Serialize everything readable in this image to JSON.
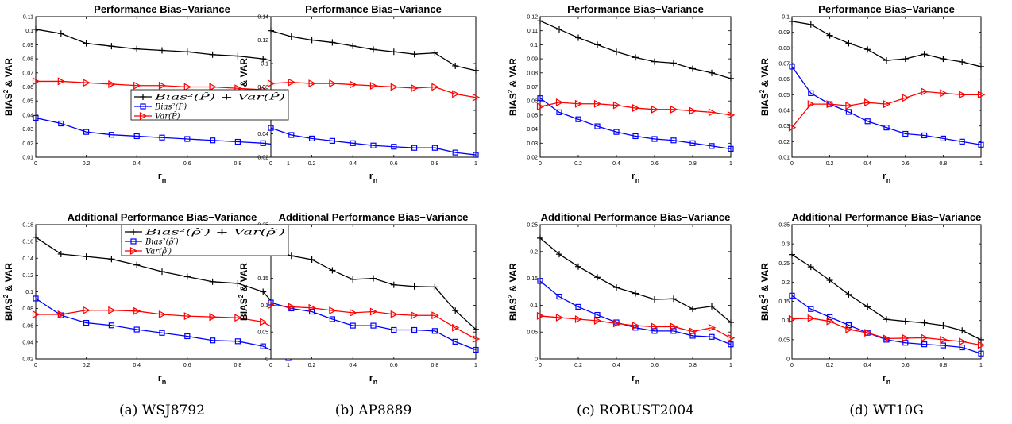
{
  "figure": {
    "y_axis_label": "BIAS",
    "y_axis_sup": "2",
    "y_axis_rest": " & VAR",
    "x_axis_label": "r",
    "x_axis_sub": "n",
    "top_title": "Performance Bias−Variance",
    "bottom_title": "Additional Performance Bias−Variance"
  },
  "captions": [
    "(a) WSJ8792",
    "(b) AP8889",
    "(c) ROBUST2004",
    "(d) WT10G"
  ],
  "legend_top": [
    "Bias²(P̂) + Var(P̂)",
    "Bias²(P̂)",
    "Var(P̂)"
  ],
  "legend_bottom": [
    "Bias²(ρ̂′) + Var(ρ̂′)",
    "Bias²(ρ̂′)",
    "Var(ρ̂′)"
  ],
  "colors": {
    "total": "#000000",
    "bias": "#0000ff",
    "var": "#ff0000"
  },
  "chart_data": [
    {
      "type": "line",
      "title": "Performance Bias−Variance",
      "xlabel": "r_n",
      "ylabel": "BIAS^2 & VAR",
      "x": [
        0,
        0.1,
        0.2,
        0.3,
        0.4,
        0.5,
        0.6,
        0.7,
        0.8,
        0.9,
        1
      ],
      "xlim": [
        0,
        1
      ],
      "ylim": [
        0.01,
        0.11
      ],
      "xticks": [
        "0",
        "0.2",
        "0.4",
        "0.6",
        "0.8",
        "1"
      ],
      "yticks": [
        "0.01",
        "0.02",
        "0.03",
        "0.04",
        "0.05",
        "0.06",
        "0.07",
        "0.08",
        "0.09",
        "0.1",
        "0.11"
      ],
      "legend": "right",
      "series": [
        {
          "values": [
            0.101,
            0.098,
            0.091,
            0.089,
            0.087,
            0.086,
            0.085,
            0.083,
            0.082,
            0.08,
            0.076
          ]
        },
        {
          "values": [
            0.038,
            0.034,
            0.028,
            0.026,
            0.025,
            0.024,
            0.023,
            0.022,
            0.021,
            0.02,
            0.018
          ]
        },
        {
          "values": [
            0.064,
            0.064,
            0.063,
            0.062,
            0.061,
            0.061,
            0.06,
            0.06,
            0.059,
            0.058,
            0.057
          ]
        }
      ]
    },
    {
      "type": "line",
      "title": "Performance Bias−Variance",
      "xlabel": "r_n",
      "ylabel": "BIAS^2 & VAR",
      "x": [
        0,
        0.1,
        0.2,
        0.3,
        0.4,
        0.5,
        0.6,
        0.7,
        0.8,
        0.9,
        1
      ],
      "xlim": [
        0,
        1
      ],
      "ylim": [
        0.02,
        0.14
      ],
      "xticks": [
        "0",
        "0.2",
        "0.4",
        "0.6",
        "0.8",
        "1"
      ],
      "yticks": [
        "0.02",
        "0.04",
        "0.06",
        "0.08",
        "0.1",
        "0.12",
        "0.14"
      ],
      "series": [
        {
          "values": [
            0.128,
            0.123,
            0.12,
            0.118,
            0.115,
            0.112,
            0.11,
            0.108,
            0.109,
            0.098,
            0.094
          ]
        },
        {
          "values": [
            0.045,
            0.039,
            0.036,
            0.034,
            0.032,
            0.03,
            0.029,
            0.028,
            0.028,
            0.024,
            0.022
          ]
        },
        {
          "values": [
            0.083,
            0.084,
            0.083,
            0.083,
            0.082,
            0.081,
            0.08,
            0.079,
            0.08,
            0.074,
            0.071
          ]
        }
      ]
    },
    {
      "type": "line",
      "title": "Performance Bias−Variance",
      "xlabel": "r_n",
      "ylabel": "BIAS^2 & VAR",
      "x": [
        0,
        0.1,
        0.2,
        0.3,
        0.4,
        0.5,
        0.6,
        0.7,
        0.8,
        0.9,
        1
      ],
      "xlim": [
        0,
        1
      ],
      "ylim": [
        0.02,
        0.12
      ],
      "xticks": [
        "0",
        "0.2",
        "0.4",
        "0.6",
        "0.8",
        "1"
      ],
      "yticks": [
        "0.02",
        "0.03",
        "0.04",
        "0.05",
        "0.06",
        "0.07",
        "0.08",
        "0.09",
        "0.1",
        "0.11",
        "0.12"
      ],
      "series": [
        {
          "values": [
            0.117,
            0.111,
            0.105,
            0.1,
            0.095,
            0.091,
            0.088,
            0.087,
            0.083,
            0.08,
            0.076
          ]
        },
        {
          "values": [
            0.062,
            0.052,
            0.047,
            0.042,
            0.038,
            0.035,
            0.033,
            0.032,
            0.03,
            0.028,
            0.026
          ]
        },
        {
          "values": [
            0.056,
            0.059,
            0.058,
            0.058,
            0.057,
            0.055,
            0.054,
            0.054,
            0.053,
            0.052,
            0.05
          ]
        }
      ]
    },
    {
      "type": "line",
      "title": "Performance Bias−Variance",
      "xlabel": "r_n",
      "ylabel": "BIAS^2 & VAR",
      "x": [
        0,
        0.1,
        0.2,
        0.3,
        0.4,
        0.5,
        0.6,
        0.7,
        0.8,
        0.9,
        1
      ],
      "xlim": [
        0,
        1
      ],
      "ylim": [
        0.01,
        0.1
      ],
      "xticks": [
        "0",
        "0.2",
        "0.4",
        "0.6",
        "0.8",
        "1"
      ],
      "yticks": [
        "0.01",
        "0.02",
        "0.03",
        "0.04",
        "0.05",
        "0.06",
        "0.07",
        "0.08",
        "0.09",
        "0.1"
      ],
      "series": [
        {
          "values": [
            0.097,
            0.095,
            0.088,
            0.083,
            0.079,
            0.072,
            0.073,
            0.076,
            0.073,
            0.071,
            0.068
          ]
        },
        {
          "values": [
            0.068,
            0.051,
            0.044,
            0.039,
            0.033,
            0.029,
            0.025,
            0.024,
            0.022,
            0.02,
            0.018
          ]
        },
        {
          "values": [
            0.029,
            0.044,
            0.044,
            0.043,
            0.045,
            0.044,
            0.048,
            0.052,
            0.051,
            0.05,
            0.05
          ]
        }
      ]
    },
    {
      "type": "line",
      "title": "Additional Performance Bias−Variance",
      "xlabel": "r_n",
      "ylabel": "BIAS^2 & VAR",
      "x": [
        0,
        0.1,
        0.2,
        0.3,
        0.4,
        0.5,
        0.6,
        0.7,
        0.8,
        0.9,
        1
      ],
      "xlim": [
        0,
        1
      ],
      "ylim": [
        0.02,
        0.18
      ],
      "xticks": [
        "0",
        "0.2",
        "0.4",
        "0.6",
        "0.8",
        "1"
      ],
      "yticks": [
        "0.02",
        "0.04",
        "0.06",
        "0.08",
        "0.1",
        "0.12",
        "0.14",
        "0.16",
        "0.18"
      ],
      "legend": "top-right",
      "series": [
        {
          "values": [
            0.165,
            0.145,
            0.142,
            0.139,
            0.132,
            0.124,
            0.118,
            0.112,
            0.11,
            0.1,
            0.066
          ]
        },
        {
          "values": [
            0.092,
            0.072,
            0.063,
            0.06,
            0.055,
            0.051,
            0.047,
            0.042,
            0.041,
            0.035,
            0.021
          ]
        },
        {
          "values": [
            0.073,
            0.073,
            0.078,
            0.078,
            0.077,
            0.073,
            0.071,
            0.07,
            0.069,
            0.064,
            0.047
          ]
        }
      ]
    },
    {
      "type": "line",
      "title": "Additional Performance Bias−Variance",
      "xlabel": "r_n",
      "ylabel": "BIAS^2 & VAR",
      "x": [
        0,
        0.1,
        0.2,
        0.3,
        0.4,
        0.5,
        0.6,
        0.7,
        0.8,
        0.9,
        1
      ],
      "xlim": [
        0,
        1
      ],
      "ylim": [
        0,
        0.25
      ],
      "xticks": [
        "0",
        "0.2",
        "0.4",
        "0.6",
        "0.8",
        "1"
      ],
      "yticks": [
        "0",
        "0.05",
        "0.1",
        "0.15",
        "0.2",
        "0.25"
      ],
      "series": [
        {
          "values": [
            0.205,
            0.192,
            0.185,
            0.165,
            0.148,
            0.15,
            0.138,
            0.135,
            0.134,
            0.09,
            0.055
          ]
        },
        {
          "values": [
            0.105,
            0.094,
            0.088,
            0.074,
            0.062,
            0.062,
            0.054,
            0.054,
            0.052,
            0.032,
            0.017
          ]
        },
        {
          "values": [
            0.1,
            0.097,
            0.095,
            0.09,
            0.086,
            0.088,
            0.083,
            0.081,
            0.081,
            0.058,
            0.037
          ]
        }
      ]
    },
    {
      "type": "line",
      "title": "Additional Performance Bias−Variance",
      "xlabel": "r_n",
      "ylabel": "BIAS^2 & VAR",
      "x": [
        0,
        0.1,
        0.2,
        0.3,
        0.4,
        0.5,
        0.6,
        0.7,
        0.8,
        0.9,
        1
      ],
      "xlim": [
        0,
        1
      ],
      "ylim": [
        0,
        0.25
      ],
      "xticks": [
        "0",
        "0.2",
        "0.4",
        "0.6",
        "0.8",
        "1"
      ],
      "yticks": [
        "0",
        "0.05",
        "0.1",
        "0.15",
        "0.2",
        "0.25"
      ],
      "series": [
        {
          "values": [
            0.225,
            0.195,
            0.172,
            0.152,
            0.133,
            0.122,
            0.111,
            0.112,
            0.093,
            0.098,
            0.068
          ]
        },
        {
          "values": [
            0.145,
            0.116,
            0.097,
            0.082,
            0.068,
            0.058,
            0.052,
            0.052,
            0.043,
            0.041,
            0.027
          ]
        },
        {
          "values": [
            0.08,
            0.077,
            0.074,
            0.071,
            0.066,
            0.062,
            0.06,
            0.06,
            0.051,
            0.058,
            0.039
          ]
        }
      ]
    },
    {
      "type": "line",
      "title": "Additional Performance Bias−Variance",
      "xlabel": "r_n",
      "ylabel": "BIAS^2 & VAR",
      "x": [
        0,
        0.1,
        0.2,
        0.3,
        0.4,
        0.5,
        0.6,
        0.7,
        0.8,
        0.9,
        1
      ],
      "xlim": [
        0,
        1
      ],
      "ylim": [
        0,
        0.35
      ],
      "xticks": [
        "0",
        "0.2",
        "0.4",
        "0.6",
        "0.8",
        "1"
      ],
      "yticks": [
        "0",
        "0.05",
        "0.1",
        "0.15",
        "0.2",
        "0.25",
        "0.3",
        "0.35"
      ],
      "series": [
        {
          "values": [
            0.272,
            0.24,
            0.205,
            0.168,
            0.136,
            0.103,
            0.098,
            0.094,
            0.087,
            0.074,
            0.05
          ]
        },
        {
          "values": [
            0.165,
            0.13,
            0.109,
            0.088,
            0.068,
            0.05,
            0.042,
            0.038,
            0.035,
            0.03,
            0.014
          ]
        },
        {
          "values": [
            0.104,
            0.106,
            0.098,
            0.077,
            0.068,
            0.053,
            0.054,
            0.055,
            0.05,
            0.045,
            0.036
          ]
        }
      ]
    }
  ]
}
